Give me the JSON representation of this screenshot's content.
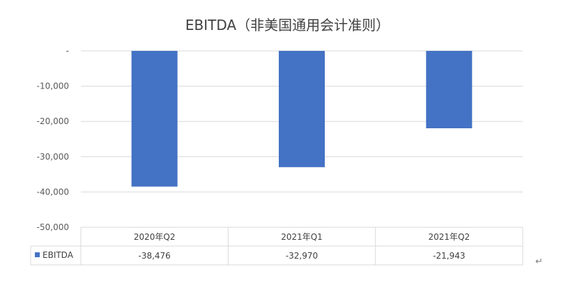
{
  "chart_data": {
    "type": "bar",
    "title": "EBITDA（非美国通用会计准则）",
    "categories": [
      "2020年Q2",
      "2021年Q1",
      "2021年Q2"
    ],
    "series": [
      {
        "name": "EBITDA",
        "values": [
          -38476,
          -32970,
          -21943
        ],
        "display": [
          "-38,476",
          "-32,970",
          "-21,943"
        ],
        "color": "#4472C4"
      }
    ],
    "ylim": [
      -50000,
      0
    ],
    "yticks": [
      0,
      -10000,
      -20000,
      -30000,
      -40000,
      -50000
    ],
    "ytick_labels": [
      "-",
      "-10,000",
      "-20,000",
      "-30,000",
      "-40,000",
      "-50,000"
    ],
    "grid": true,
    "legend": "data-table"
  },
  "decor": {
    "paragraph_mark": "↵"
  }
}
